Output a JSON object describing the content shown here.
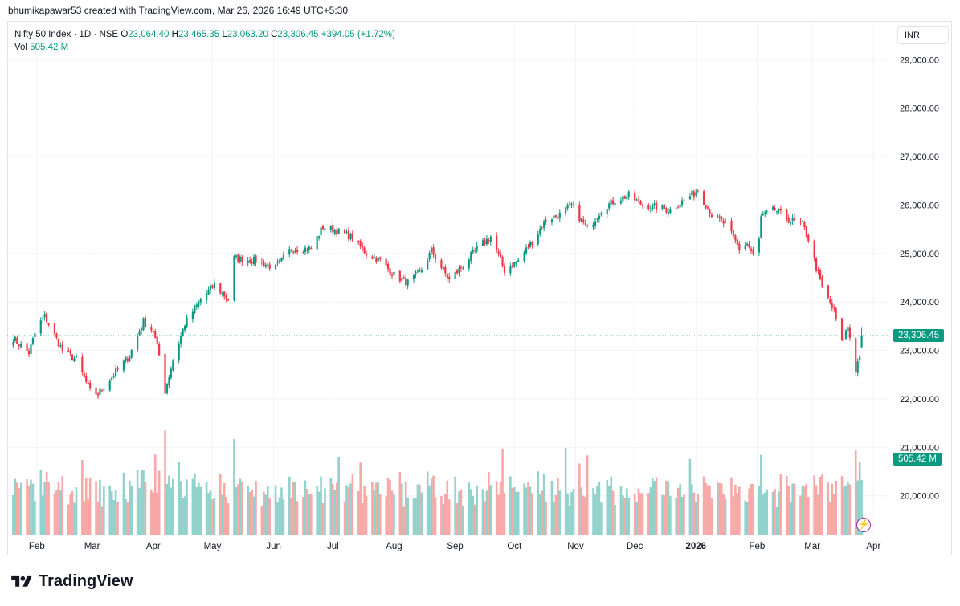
{
  "header": {
    "credit": "bhumikapawar53 created with TradingView.com, Mar 26, 2026 16:49 UTC+5:30"
  },
  "legend": {
    "symbol": "Nifty 50 Index · 1D · NSE",
    "o_label": "O",
    "o_value": "23,064.40",
    "h_label": "H",
    "h_value": "23,465.35",
    "l_label": "L",
    "l_value": "23,063.20",
    "c_label": "C",
    "c_value": "23,306.45",
    "change": "+394.05 (+1.72%)",
    "vol_label": "Vol",
    "vol_value": "505.42 M"
  },
  "currency": "INR",
  "price_tag": "23,306.45",
  "volume_tag": "505.42 M",
  "brand": {
    "name": "TradingView"
  },
  "colors": {
    "up": "#089981",
    "down": "#f23645",
    "vol_up": "#92d2cc",
    "vol_down": "#f7a9a7",
    "grid": "#f0f3fa"
  },
  "chart_data": {
    "type": "candlestick",
    "symbol": "Nifty 50 Index",
    "interval": "1D",
    "exchange": "NSE",
    "y_ticks": [
      "29,000.00",
      "28,000.00",
      "27,000.00",
      "26,000.00",
      "25,000.00",
      "24,000.00",
      "23,000.00",
      "22,000.00",
      "21,000.00",
      "20,000.00"
    ],
    "y_tick_values": [
      29000,
      28000,
      27000,
      26000,
      25000,
      24000,
      23000,
      22000,
      21000,
      20000
    ],
    "x_ticks": [
      "Feb",
      "Mar",
      "Apr",
      "May",
      "Jun",
      "Jul",
      "Aug",
      "Sep",
      "Oct",
      "Nov",
      "Dec",
      "2026",
      "Feb",
      "Mar",
      "Apr"
    ],
    "x_tick_dates": [
      "2025-02-01",
      "2025-03-01",
      "2025-04-01",
      "2025-05-01",
      "2025-06-01",
      "2025-07-01",
      "2025-08-01",
      "2025-09-01",
      "2025-10-01",
      "2025-11-01",
      "2025-12-01",
      "2026-01-01",
      "2026-02-01",
      "2026-03-01",
      "2026-04-01"
    ],
    "close_anchors": [
      [
        "2025-01-20",
        23250
      ],
      [
        "2025-01-28",
        22950
      ],
      [
        "2025-02-01",
        23480
      ],
      [
        "2025-02-05",
        23700
      ],
      [
        "2025-02-14",
        23000
      ],
      [
        "2025-02-21",
        22800
      ],
      [
        "2025-02-28",
        22150
      ],
      [
        "2025-03-04",
        22100
      ],
      [
        "2025-03-12",
        22500
      ],
      [
        "2025-03-20",
        22900
      ],
      [
        "2025-03-27",
        23600
      ],
      [
        "2025-04-01",
        23400
      ],
      [
        "2025-04-04",
        22900
      ],
      [
        "2025-04-07",
        22160
      ],
      [
        "2025-04-11",
        22800
      ],
      [
        "2025-04-17",
        23550
      ],
      [
        "2025-04-25",
        24050
      ],
      [
        "2025-05-02",
        24350
      ],
      [
        "2025-05-09",
        24050
      ],
      [
        "2025-05-12",
        24900
      ],
      [
        "2025-05-23",
        24850
      ],
      [
        "2025-06-02",
        24700
      ],
      [
        "2025-06-10",
        25100
      ],
      [
        "2025-06-20",
        25100
      ],
      [
        "2025-06-26",
        25550
      ],
      [
        "2025-07-01",
        25500
      ],
      [
        "2025-07-10",
        25350
      ],
      [
        "2025-07-18",
        25000
      ],
      [
        "2025-07-25",
        24850
      ],
      [
        "2025-08-01",
        24550
      ],
      [
        "2025-08-08",
        24400
      ],
      [
        "2025-08-14",
        24600
      ],
      [
        "2025-08-20",
        25050
      ],
      [
        "2025-08-29",
        24450
      ],
      [
        "2025-09-05",
        24750
      ],
      [
        "2025-09-12",
        25100
      ],
      [
        "2025-09-19",
        25350
      ],
      [
        "2025-09-26",
        24650
      ],
      [
        "2025-10-03",
        24850
      ],
      [
        "2025-10-10",
        25250
      ],
      [
        "2025-10-17",
        25700
      ],
      [
        "2025-10-24",
        25800
      ],
      [
        "2025-10-30",
        26000
      ],
      [
        "2025-11-07",
        25500
      ],
      [
        "2025-11-14",
        25900
      ],
      [
        "2025-11-21",
        26100
      ],
      [
        "2025-11-28",
        26200
      ],
      [
        "2025-12-05",
        26000
      ],
      [
        "2025-12-12",
        25950
      ],
      [
        "2025-12-19",
        25900
      ],
      [
        "2025-12-26",
        26100
      ],
      [
        "2026-01-02",
        26300
      ],
      [
        "2026-01-09",
        25800
      ],
      [
        "2026-01-16",
        25600
      ],
      [
        "2026-01-23",
        25100
      ],
      [
        "2026-01-27",
        25200
      ],
      [
        "2026-02-01",
        24800
      ],
      [
        "2026-02-03",
        25750
      ],
      [
        "2026-02-10",
        25900
      ],
      [
        "2026-02-17",
        25700
      ],
      [
        "2026-02-24",
        25600
      ],
      [
        "2026-02-27",
        25300
      ],
      [
        "2026-03-03",
        24700
      ],
      [
        "2026-03-06",
        24300
      ],
      [
        "2026-03-12",
        23800
      ],
      [
        "2026-03-16",
        23150
      ],
      [
        "2026-03-19",
        23500
      ],
      [
        "2026-03-23",
        22600
      ],
      [
        "2026-03-25",
        22912
      ],
      [
        "2026-03-26",
        23306.45
      ]
    ],
    "last_bar": {
      "open": 23064.4,
      "high": 23465.35,
      "low": 23063.2,
      "close": 23306.45,
      "change": 394.05,
      "change_pct": 1.72,
      "volume_m": 505.42
    },
    "y_range": [
      19200,
      29800
    ],
    "volume_range_m": [
      0,
      1200
    ],
    "grid": true
  }
}
